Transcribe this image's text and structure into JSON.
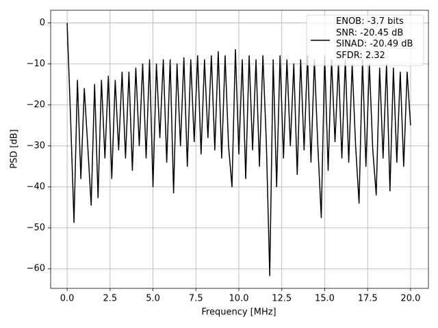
{
  "chart_data": {
    "type": "line",
    "xlabel": "Frequency [MHz]",
    "ylabel": "PSD [dB]",
    "x": [
      0,
      0.2,
      0.4,
      0.6,
      0.8,
      1.0,
      1.2,
      1.4,
      1.6,
      1.8,
      2.0,
      2.2,
      2.4,
      2.6,
      2.8,
      3.0,
      3.2,
      3.4,
      3.6,
      3.8,
      4.0,
      4.2,
      4.4,
      4.6,
      4.8,
      5.0,
      5.2,
      5.4,
      5.6,
      5.8,
      6.0,
      6.2,
      6.4,
      6.6,
      6.8,
      7.0,
      7.2,
      7.4,
      7.6,
      7.8,
      8.0,
      8.2,
      8.4,
      8.6,
      8.8,
      9.0,
      9.2,
      9.4,
      9.6,
      9.8,
      10.0,
      10.2,
      10.4,
      10.6,
      10.8,
      11.0,
      11.2,
      11.4,
      11.6,
      11.8,
      12.0,
      12.2,
      12.4,
      12.6,
      12.8,
      13.0,
      13.2,
      13.4,
      13.6,
      13.8,
      14.0,
      14.2,
      14.4,
      14.6,
      14.8,
      15.0,
      15.2,
      15.4,
      15.6,
      15.8,
      16.0,
      16.2,
      16.4,
      16.6,
      16.8,
      17.0,
      17.2,
      17.4,
      17.6,
      17.8,
      18.0,
      18.2,
      18.4,
      18.6,
      18.8,
      19.0,
      19.2,
      19.4,
      19.6,
      19.8,
      20.0
    ],
    "series": [
      {
        "name": "ENOB: -3.7 bits\nSNR: -20.45 dB\nSINAD: -20.49 dB\nSFDR: 2.32",
        "color": "#000000",
        "values": [
          0,
          -23,
          -48.7,
          -14,
          -38,
          -16,
          -30,
          -44.5,
          -15,
          -42.7,
          -14,
          -33,
          -13,
          -38,
          -14,
          -31,
          -12,
          -33,
          -12,
          -36,
          -11,
          -30,
          -10,
          -33,
          -9,
          -40,
          -10,
          -28,
          -9,
          -34,
          -9,
          -41.5,
          -10,
          -30,
          -8.5,
          -35,
          -9,
          -29,
          -8,
          -32,
          -9,
          -28,
          -8,
          -31,
          -7,
          -33,
          -8,
          -30,
          -40,
          -6.5,
          -32,
          -9,
          -38,
          -8,
          -31,
          -9,
          -35,
          -8,
          -29,
          -61.7,
          -9,
          -40,
          -8,
          -33,
          -9,
          -30,
          -10,
          -37,
          -9,
          -31,
          -8,
          -34,
          -9,
          -30,
          -47.5,
          -8,
          -36,
          -9,
          -29,
          -10,
          -33,
          -9,
          -34,
          -10,
          -30,
          -44,
          -9,
          -35,
          -10,
          -31,
          -42,
          -11,
          -33,
          -10,
          -41,
          -11,
          -34,
          -12,
          -35,
          -12,
          -25
        ]
      }
    ],
    "xlim": [
      -0.96,
      21.04
    ],
    "ylim": [
      -64.8,
      3.1
    ],
    "xticks": [
      {
        "value": 0,
        "label": "0.0"
      },
      {
        "value": 2.5,
        "label": "2.5"
      },
      {
        "value": 5,
        "label": "5.0"
      },
      {
        "value": 7.5,
        "label": "7.5"
      },
      {
        "value": 10,
        "label": "10.0"
      },
      {
        "value": 12.5,
        "label": "12.5"
      },
      {
        "value": 15,
        "label": "15.0"
      },
      {
        "value": 17.5,
        "label": "17.5"
      },
      {
        "value": 20,
        "label": "20.0"
      }
    ],
    "yticks": [
      0,
      {
        "value": -10,
        "label": "−10"
      },
      {
        "value": -20,
        "label": "−20"
      },
      {
        "value": -30,
        "label": "−30"
      },
      {
        "value": -40,
        "label": "−40"
      },
      {
        "value": -50,
        "label": "−50"
      },
      {
        "value": -60,
        "label": "−60"
      }
    ],
    "grid": true,
    "legend": "upper right"
  }
}
